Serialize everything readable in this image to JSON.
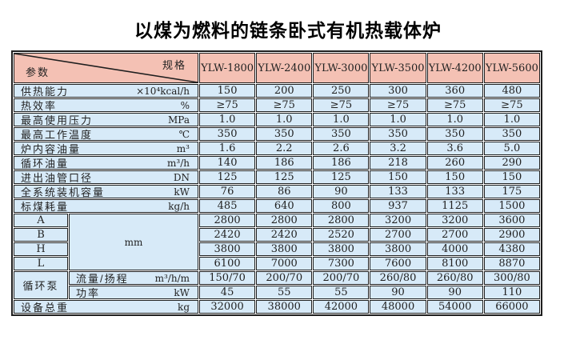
{
  "page": {
    "title": "以煤为燃料的链条卧式有机热载体炉"
  },
  "colors": {
    "header_bg": "#f4c1b4",
    "row_bg": "#d7eaf8",
    "border": "#1f1f1f"
  },
  "table": {
    "corner": {
      "spec_label": "规格",
      "param_label": "参数"
    },
    "models": [
      "YLW-1800",
      "YLW-2400",
      "YLW-3000",
      "YLW-3500",
      "YLW-4200",
      "YLW-5600"
    ],
    "dim_group_unit": "mm",
    "pump_group_label": "循环泵",
    "rows": [
      {
        "kind": "param",
        "name": "供热能力",
        "unit": "×10⁴kcal/h",
        "values": [
          "150",
          "200",
          "250",
          "300",
          "360",
          "480"
        ]
      },
      {
        "kind": "param",
        "name": "热效率",
        "unit": "%",
        "values": [
          "≥75",
          "≥75",
          "≥75",
          "≥75",
          "≥75",
          "≥75"
        ]
      },
      {
        "kind": "param",
        "name": "最高使用压力",
        "unit": "MPa",
        "values": [
          "1.0",
          "1.0",
          "1.0",
          "1.0",
          "1.0",
          "1.0"
        ]
      },
      {
        "kind": "param",
        "name": "最高工作温度",
        "unit": "℃",
        "values": [
          "350",
          "350",
          "350",
          "350",
          "350",
          "350"
        ]
      },
      {
        "kind": "param",
        "name": "炉内容油量",
        "unit": "m³",
        "values": [
          "1.6",
          "2.2",
          "2.6",
          "3.2",
          "3.6",
          "5.0"
        ]
      },
      {
        "kind": "param",
        "name": "循环油量",
        "unit": "m³/h",
        "values": [
          "140",
          "186",
          "186",
          "218",
          "260",
          "290"
        ]
      },
      {
        "kind": "param",
        "name": "进出油管口径",
        "unit": "DN",
        "values": [
          "125",
          "125",
          "125",
          "150",
          "150",
          "150"
        ]
      },
      {
        "kind": "param",
        "name": "全系统装机容量",
        "unit": "kW",
        "values": [
          "76",
          "86",
          "90",
          "133",
          "133",
          "175"
        ]
      },
      {
        "kind": "param",
        "name": "标煤耗量",
        "unit": "kg/h",
        "values": [
          "485",
          "640",
          "800",
          "937",
          "1125",
          "1500"
        ]
      },
      {
        "kind": "dim",
        "name": "A",
        "values": [
          "2800",
          "2800",
          "2800",
          "3200",
          "3200",
          "3600"
        ]
      },
      {
        "kind": "dim",
        "name": "B",
        "values": [
          "2420",
          "2420",
          "2520",
          "2700",
          "2700",
          "2900"
        ]
      },
      {
        "kind": "dim",
        "name": "H",
        "values": [
          "3800",
          "3800",
          "3800",
          "3800",
          "4000",
          "4380"
        ]
      },
      {
        "kind": "dim",
        "name": "L",
        "values": [
          "6100",
          "7000",
          "7300",
          "7600",
          "8100",
          "8870"
        ]
      },
      {
        "kind": "pump",
        "name": "流量/扬程",
        "unit": "m³/h/m",
        "values": [
          "150/70",
          "200/70",
          "200/70",
          "260/80",
          "260/80",
          "300/80"
        ]
      },
      {
        "kind": "pump",
        "name": "功率",
        "unit": "kW",
        "values": [
          "45",
          "55",
          "55",
          "90",
          "90",
          "110"
        ]
      },
      {
        "kind": "param",
        "name": "设备总重",
        "unit": "kg",
        "values": [
          "32000",
          "38000",
          "42000",
          "48000",
          "54000",
          "66000"
        ]
      }
    ]
  }
}
